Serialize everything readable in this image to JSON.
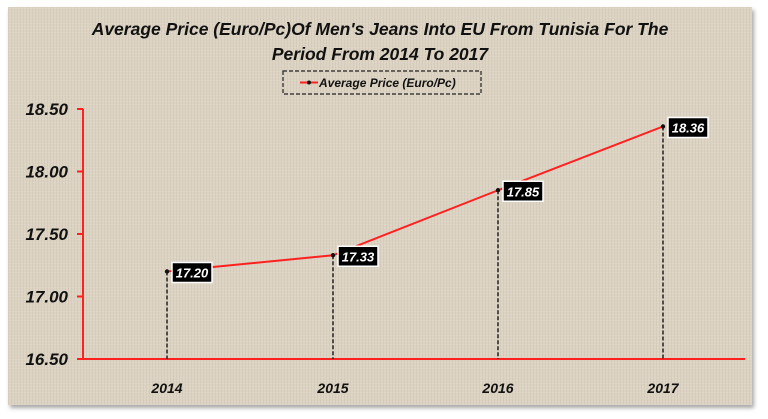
{
  "chart_data": {
    "type": "line",
    "title": "Average Price (Euro/Pc)Of Men's Jeans Into EU From Tunisia For The Period From 2014 To 2017",
    "title_lines": [
      "Average Price (Euro/Pc)Of Men's Jeans Into EU From Tunisia For The",
      "Period From 2014 To 2017"
    ],
    "categories": [
      "2014",
      "2015",
      "2016",
      "2017"
    ],
    "series": [
      {
        "name": "Average Price (Euro/Pc)",
        "values": [
          17.2,
          17.33,
          17.85,
          18.36
        ],
        "labels": [
          "17.20",
          "17.33",
          "17.85",
          "18.36"
        ],
        "color": "#ff2020"
      }
    ],
    "ylim": [
      16.5,
      18.5
    ],
    "yticks": [
      "16.50",
      "17.00",
      "17.50",
      "18.00",
      "18.50"
    ],
    "xlabel": "",
    "ylabel": "",
    "legend": "top-center",
    "grid": false,
    "drop_lines": true
  }
}
